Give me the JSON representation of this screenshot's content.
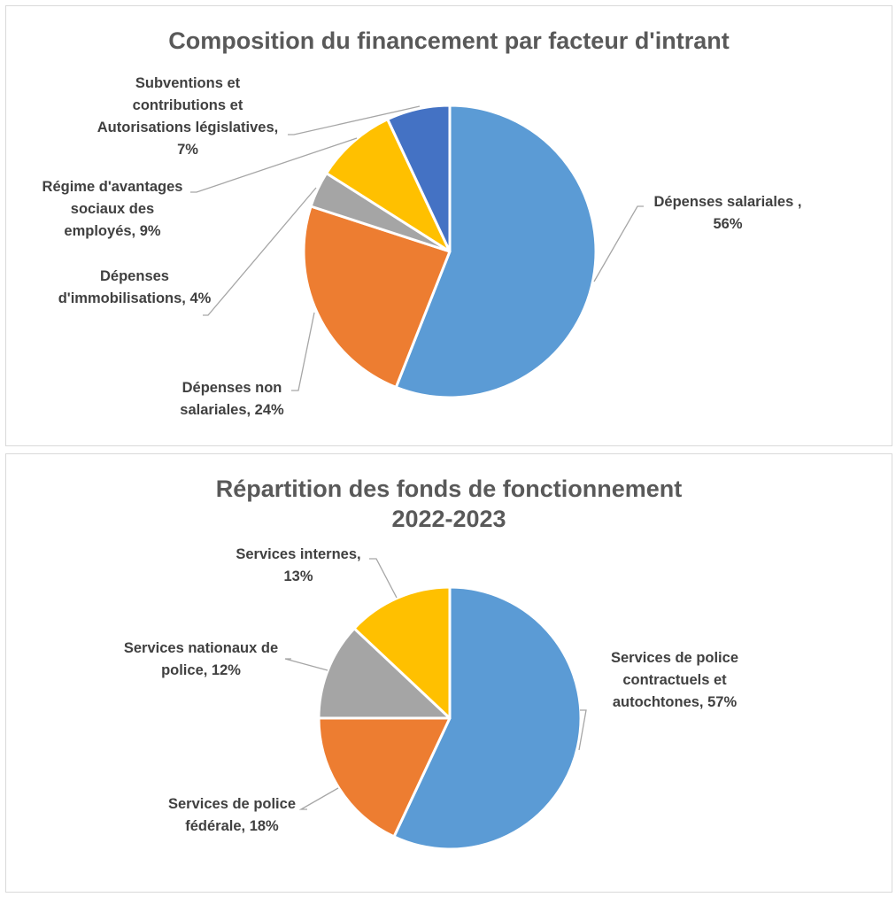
{
  "colors": {
    "blue": "#5b9bd5",
    "orange": "#ed7d31",
    "gray": "#a5a5a5",
    "yellow": "#ffc000",
    "darkblue": "#4472c4",
    "leader": "#a6a6a6",
    "title": "#595959",
    "label": "#404040"
  },
  "chart_data": [
    {
      "type": "pie",
      "title": "Composition du financement par facteur d'intrant",
      "slices": [
        {
          "label_lines": [
            "Dépenses salariales ,",
            "56%"
          ],
          "category": "Dépenses salariales",
          "value": 56,
          "color": "#5b9bd5"
        },
        {
          "label_lines": [
            "Dépenses non",
            "salariales, 24%"
          ],
          "category": "Dépenses non salariales",
          "value": 24,
          "color": "#ed7d31"
        },
        {
          "label_lines": [
            "Dépenses",
            "d'immobilisations, 4%"
          ],
          "category": "Dépenses d'immobilisations",
          "value": 4,
          "color": "#a5a5a5"
        },
        {
          "label_lines": [
            "Régime d'avantages",
            "sociaux des",
            "employés, 9%"
          ],
          "category": "Régime d'avantages sociaux des employés",
          "value": 9,
          "color": "#ffc000"
        },
        {
          "label_lines": [
            "Subventions et",
            "contributions et",
            "Autorisations  législatives,",
            "7%"
          ],
          "category": "Subventions et contributions et Autorisations législatives",
          "value": 7,
          "color": "#4472c4"
        }
      ]
    },
    {
      "type": "pie",
      "title_lines": [
        "Répartition des fonds de fonctionnement",
        "2022-2023"
      ],
      "title": "Répartition des fonds de fonctionnement 2022-2023",
      "slices": [
        {
          "label_lines": [
            "Services de police",
            "contractuels et",
            "autochtones, 57%"
          ],
          "category": "Services de police contractuels et autochtones",
          "value": 57,
          "color": "#5b9bd5"
        },
        {
          "label_lines": [
            "Services de police",
            "fédérale, 18%"
          ],
          "category": "Services de police fédérale",
          "value": 18,
          "color": "#ed7d31"
        },
        {
          "label_lines": [
            "Services nationaux de",
            "police, 12%"
          ],
          "category": "Services nationaux de police",
          "value": 12,
          "color": "#a5a5a5"
        },
        {
          "label_lines": [
            "Services internes,",
            "13%"
          ],
          "category": "Services internes",
          "value": 13,
          "color": "#ffc000"
        }
      ]
    }
  ]
}
